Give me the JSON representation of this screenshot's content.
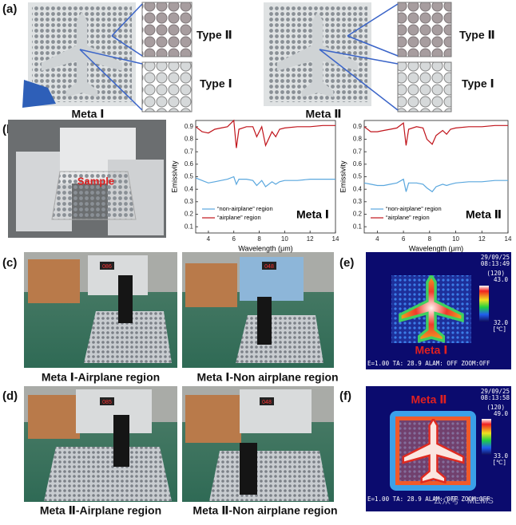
{
  "panel_labels": [
    "(a)",
    "(b)",
    "(c)",
    "(d)",
    "(e)",
    "(f)"
  ],
  "a": {
    "left": {
      "zoom_top": "Type Ⅱ",
      "zoom_bottom": "Type Ⅰ",
      "caption": "Meta Ⅰ"
    },
    "right": {
      "zoom_top": "Type Ⅱ",
      "zoom_bottom": "Type Ⅰ",
      "caption": "Meta Ⅱ"
    }
  },
  "b": {
    "photo_label": "Sample"
  },
  "c": {
    "captions": [
      "Meta Ⅰ-Airplane region",
      "Meta Ⅰ-Non airplane region"
    ],
    "meter_readings": [
      "086",
      "048"
    ]
  },
  "d": {
    "captions": [
      "Meta Ⅱ-Airplane region",
      "Meta Ⅱ-Non airplane region"
    ],
    "meter_readings": [
      "085",
      "048"
    ]
  },
  "e": {
    "date": "29/09/25",
    "time": "08:13:49",
    "mode": "(120)",
    "scale_max": "43.0",
    "scale_min": "32.0",
    "unit": "[℃]",
    "label": "Meta Ⅰ",
    "status": "E=1.00  TA: 28.9  ALAM: OFF  ZOOM:OFF"
  },
  "f": {
    "date": "29/09/25",
    "time": "08:13:58",
    "mode": "(120)",
    "scale_max": "49.0",
    "scale_min": "33.0",
    "unit": "[℃]",
    "label": "Meta Ⅱ",
    "status": "E=1.00  TA: 28.9  ALAM: OFF  ZOOM:OFF",
    "watermark": "公众号 · MEMS"
  },
  "chart_data": [
    {
      "type": "line",
      "annotation": "Meta Ⅰ",
      "x_label": "Wavelength (μm)",
      "y_label": "Emissivity",
      "x": [
        3,
        3.5,
        4,
        4.5,
        5,
        5.5,
        6,
        6.2,
        6.4,
        7,
        7.5,
        7.8,
        8.2,
        8.5,
        9,
        9.3,
        9.6,
        10,
        11,
        12,
        13,
        14
      ],
      "series": [
        {
          "name": "“non-airplane” region",
          "color": "#5aa7de",
          "values": [
            0.49,
            0.47,
            0.45,
            0.46,
            0.47,
            0.48,
            0.5,
            0.44,
            0.48,
            0.48,
            0.47,
            0.43,
            0.47,
            0.42,
            0.46,
            0.44,
            0.46,
            0.47,
            0.47,
            0.48,
            0.48,
            0.48
          ]
        },
        {
          "name": "“airplane” region",
          "color": "#c0141b",
          "values": [
            0.9,
            0.86,
            0.85,
            0.88,
            0.89,
            0.9,
            0.95,
            0.73,
            0.88,
            0.9,
            0.9,
            0.82,
            0.9,
            0.75,
            0.86,
            0.82,
            0.88,
            0.89,
            0.9,
            0.9,
            0.91,
            0.91
          ]
        }
      ],
      "xlim": [
        3,
        14
      ],
      "xticks": [
        4,
        6,
        8,
        10,
        12,
        14
      ],
      "ylim": [
        0.05,
        0.95
      ],
      "yticks": [
        0.1,
        0.2,
        0.3,
        0.4,
        0.5,
        0.6,
        0.7,
        0.8,
        0.9
      ]
    },
    {
      "type": "line",
      "annotation": "Meta Ⅱ",
      "x_label": "Wavelength (μm)",
      "y_label": "Emissivity",
      "x": [
        3,
        3.5,
        4,
        4.5,
        5,
        5.5,
        6,
        6.2,
        6.4,
        7,
        7.5,
        7.8,
        8.2,
        8.5,
        9,
        9.3,
        9.6,
        10,
        11,
        12,
        13,
        14
      ],
      "series": [
        {
          "name": "“non-airplane” region",
          "color": "#5aa7de",
          "values": [
            0.45,
            0.44,
            0.43,
            0.43,
            0.44,
            0.45,
            0.48,
            0.38,
            0.45,
            0.45,
            0.44,
            0.41,
            0.38,
            0.42,
            0.44,
            0.43,
            0.44,
            0.45,
            0.46,
            0.46,
            0.47,
            0.47
          ]
        },
        {
          "name": "“airplane” region",
          "color": "#c0141b",
          "values": [
            0.9,
            0.86,
            0.86,
            0.87,
            0.88,
            0.89,
            0.93,
            0.75,
            0.88,
            0.9,
            0.89,
            0.8,
            0.76,
            0.83,
            0.87,
            0.84,
            0.88,
            0.89,
            0.9,
            0.9,
            0.91,
            0.91
          ]
        }
      ],
      "xlim": [
        3,
        14
      ],
      "xticks": [
        4,
        6,
        8,
        10,
        12,
        14
      ],
      "ylim": [
        0.05,
        0.95
      ],
      "yticks": [
        0.1,
        0.2,
        0.3,
        0.4,
        0.5,
        0.6,
        0.7,
        0.8,
        0.9
      ]
    }
  ]
}
